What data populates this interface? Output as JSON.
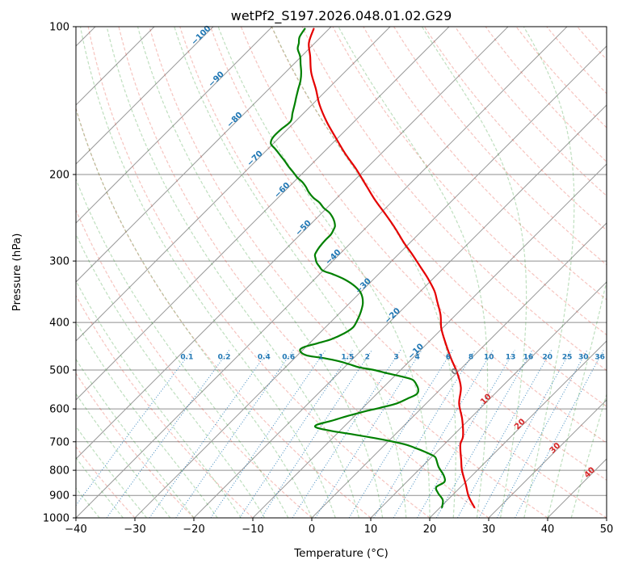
{
  "title": "wetPf2_S197.2026.048.01.02.G29",
  "axes": {
    "xlabel": "Temperature (°C)",
    "ylabel": "Pressure (hPa)",
    "x_ticks": [
      -40,
      -30,
      -20,
      -10,
      0,
      10,
      20,
      30,
      40,
      50
    ],
    "y_ticks": [
      100,
      200,
      300,
      400,
      500,
      600,
      700,
      800,
      900,
      1000
    ]
  },
  "chart_data": {
    "type": "line",
    "variant": "skew-t-log-p",
    "temp_range": [
      -40,
      50
    ],
    "pressure_range": [
      100,
      1000
    ],
    "skew_degrees": 45,
    "grid_color": "#8f8f8f",
    "isotherms": {
      "start": -160,
      "end": 50,
      "step": 10,
      "color": "#9a9a9a"
    },
    "isotherm_labels": [
      {
        "t": -100,
        "p": 105
      },
      {
        "t": -90,
        "p": 129
      },
      {
        "t": -80,
        "p": 156
      },
      {
        "t": -70,
        "p": 187
      },
      {
        "t": -60,
        "p": 217
      },
      {
        "t": -50,
        "p": 259
      },
      {
        "t": -40,
        "p": 297
      },
      {
        "t": -30,
        "p": 340
      },
      {
        "t": -20,
        "p": 391
      },
      {
        "t": -10,
        "p": 462
      },
      {
        "t": 0,
        "p": 508
      },
      {
        "t": 10,
        "p": 578
      },
      {
        "t": 20,
        "p": 650
      },
      {
        "t": 30,
        "p": 727
      },
      {
        "t": 40,
        "p": 815
      }
    ],
    "label_colors": {
      "negative": "#1f77b4",
      "zero": "#7f7f7f",
      "positive": "#d62728"
    },
    "dry_adiabats": {
      "start": -40,
      "end": 180,
      "step": 10,
      "color": "rgba(224,60,44,0.30)"
    },
    "moist_adiabats": {
      "start": -40,
      "end": 44,
      "step": 4,
      "color": "rgba(44,150,44,0.30)"
    },
    "mixing_ratio": {
      "values": [
        0.1,
        0.2,
        0.4,
        0.6,
        1,
        1.5,
        2,
        3,
        4,
        6,
        8,
        10,
        13,
        16,
        20,
        25,
        30,
        36
      ],
      "top_pressure": 455,
      "label_pressure": 470,
      "color": "rgba(31,119,180,0.85)",
      "label_color": "#1f77b4"
    },
    "series": [
      {
        "name": "temperature",
        "color": "#e50000",
        "points": [
          [
            952,
            25.8
          ],
          [
            905,
            23.0
          ],
          [
            856,
            20.5
          ],
          [
            800,
            17.4
          ],
          [
            764,
            15.6
          ],
          [
            710,
            12.8
          ],
          [
            682,
            11.8
          ],
          [
            630,
            8.8
          ],
          [
            585,
            5.6
          ],
          [
            543,
            3.2
          ],
          [
            508,
            0.2
          ],
          [
            470,
            -3.8
          ],
          [
            433,
            -7.8
          ],
          [
            410,
            -10.3
          ],
          [
            386,
            -12.6
          ],
          [
            362,
            -15.5
          ],
          [
            345,
            -17.7
          ],
          [
            325,
            -21.0
          ],
          [
            308,
            -24.2
          ],
          [
            290,
            -27.8
          ],
          [
            275,
            -31.1
          ],
          [
            258,
            -34.8
          ],
          [
            242,
            -38.7
          ],
          [
            226,
            -43.0
          ],
          [
            211,
            -47.0
          ],
          [
            195,
            -51.6
          ],
          [
            181,
            -56.2
          ],
          [
            168,
            -60.5
          ],
          [
            156,
            -64.7
          ],
          [
            144,
            -68.8
          ],
          [
            134,
            -72.0
          ],
          [
            124,
            -75.6
          ],
          [
            115,
            -78.5
          ],
          [
            108,
            -81.0
          ],
          [
            101,
            -82.6
          ]
        ]
      },
      {
        "name": "dewpoint",
        "color": "#008000",
        "points": [
          [
            952,
            20.3
          ],
          [
            920,
            19.2
          ],
          [
            890,
            17.2
          ],
          [
            866,
            15.9
          ],
          [
            845,
            16.4
          ],
          [
            820,
            15.2
          ],
          [
            788,
            12.9
          ],
          [
            762,
            11.3
          ],
          [
            750,
            10.4
          ],
          [
            735,
            8.2
          ],
          [
            720,
            5.6
          ],
          [
            708,
            3.2
          ],
          [
            692,
            -1.5
          ],
          [
            678,
            -6.5
          ],
          [
            665,
            -11.5
          ],
          [
            655,
            -14.5
          ],
          [
            646,
            -14.9
          ],
          [
            635,
            -13.2
          ],
          [
            620,
            -11.2
          ],
          [
            608,
            -9.2
          ],
          [
            597,
            -7.1
          ],
          [
            585,
            -5.0
          ],
          [
            572,
            -4.0
          ],
          [
            560,
            -3.2
          ],
          [
            548,
            -3.7
          ],
          [
            535,
            -4.9
          ],
          [
            523,
            -6.4
          ],
          [
            515,
            -8.9
          ],
          [
            508,
            -11.6
          ],
          [
            500,
            -14.5
          ],
          [
            494,
            -17.4
          ],
          [
            487,
            -19.6
          ],
          [
            480,
            -21.9
          ],
          [
            473,
            -25.0
          ],
          [
            467,
            -28.4
          ],
          [
            458,
            -30.2
          ],
          [
            450,
            -30.4
          ],
          [
            441,
            -28.6
          ],
          [
            433,
            -27.0
          ],
          [
            421,
            -25.8
          ],
          [
            410,
            -25.3
          ],
          [
            398,
            -25.7
          ],
          [
            386,
            -26.3
          ],
          [
            375,
            -27.0
          ],
          [
            366,
            -27.7
          ],
          [
            355,
            -28.9
          ],
          [
            345,
            -30.4
          ],
          [
            335,
            -32.6
          ],
          [
            326,
            -35.2
          ],
          [
            319,
            -37.8
          ],
          [
            314,
            -40.0
          ],
          [
            308,
            -41.3
          ],
          [
            302,
            -42.5
          ],
          [
            296,
            -43.4
          ],
          [
            291,
            -44.1
          ],
          [
            284,
            -44.5
          ],
          [
            278,
            -44.7
          ],
          [
            271,
            -44.8
          ],
          [
            265,
            -44.8
          ],
          [
            260,
            -45.1
          ],
          [
            255,
            -45.5
          ],
          [
            250,
            -46.3
          ],
          [
            245,
            -47.3
          ],
          [
            239,
            -48.8
          ],
          [
            234,
            -50.5
          ],
          [
            228,
            -52.2
          ],
          [
            223,
            -54.0
          ],
          [
            217,
            -55.8
          ],
          [
            212,
            -57.1
          ],
          [
            207,
            -58.6
          ],
          [
            203,
            -60.1
          ],
          [
            198,
            -61.7
          ],
          [
            193,
            -63.4
          ],
          [
            188,
            -65.0
          ],
          [
            184,
            -66.4
          ],
          [
            180,
            -67.8
          ],
          [
            177,
            -68.9
          ],
          [
            173,
            -70.4
          ],
          [
            168,
            -71.1
          ],
          [
            162,
            -71.1
          ],
          [
            156,
            -70.8
          ],
          [
            150,
            -71.9
          ],
          [
            144,
            -73.0
          ],
          [
            139,
            -74.0
          ],
          [
            134,
            -75.0
          ],
          [
            129,
            -76.0
          ],
          [
            124,
            -77.3
          ],
          [
            119,
            -78.9
          ],
          [
            115,
            -80.2
          ],
          [
            111,
            -81.9
          ],
          [
            108,
            -82.7
          ],
          [
            105,
            -83.6
          ],
          [
            101,
            -84.1
          ]
        ]
      }
    ]
  }
}
